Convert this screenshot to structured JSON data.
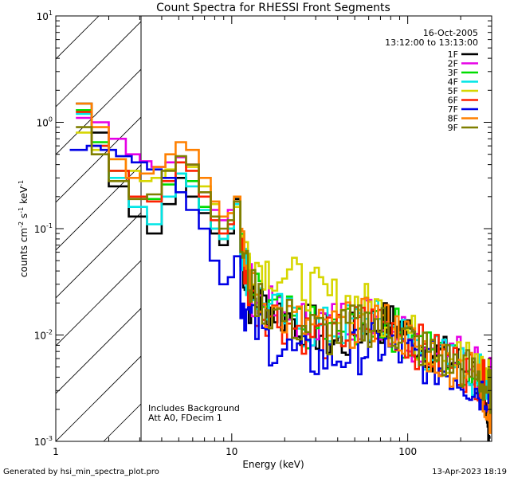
{
  "chart_data": {
    "type": "line",
    "title": "Count Spectra for RHESSI Front Segments",
    "xlabel": "Energy (keV)",
    "ylabel_parts": {
      "a": "counts cm",
      "b": "-2",
      "c": " s",
      "d": "-1",
      "e": " keV",
      "f": "-1"
    },
    "xscale": "log",
    "yscale": "log",
    "xlim": [
      1.0,
      300.0
    ],
    "ylim": [
      0.001,
      10.0
    ],
    "x_ticks": [
      {
        "value": 1,
        "label": "1"
      },
      {
        "value": 10,
        "label": "10"
      },
      {
        "value": 100,
        "label": "100"
      }
    ],
    "y_ticks": [
      {
        "value": 0.001,
        "base": "10",
        "exp": "-3"
      },
      {
        "value": 0.01,
        "base": "10",
        "exp": "-2"
      },
      {
        "value": 0.1,
        "base": "10",
        "exp": "-1"
      },
      {
        "value": 1,
        "base": "10",
        "exp": "0"
      },
      {
        "value": 10,
        "base": "10",
        "exp": "1"
      }
    ],
    "hatched_region": {
      "x_from": 1.0,
      "x_to": 3.0
    },
    "legend_header": [
      "16-Oct-2005",
      "13:12:00 to 13:13:00"
    ],
    "annotations": [
      "Includes Background",
      "Att A0, FDecim 1"
    ],
    "series": [
      {
        "name": "1F",
        "color": "#000000",
        "points": [
          [
            1.3,
            1.5
          ],
          [
            1.6,
            0.8
          ],
          [
            2.0,
            0.25
          ],
          [
            2.6,
            0.13
          ],
          [
            3.3,
            0.09
          ],
          [
            4.0,
            0.17
          ],
          [
            4.8,
            0.3
          ],
          [
            5.5,
            0.2
          ],
          [
            6.5,
            0.14
          ],
          [
            7.6,
            0.09
          ],
          [
            8.5,
            0.07
          ],
          [
            9.5,
            0.09
          ],
          [
            10.3,
            0.19
          ],
          [
            11.2,
            0.06
          ],
          [
            12.5,
            0.02
          ],
          [
            15,
            0.02
          ],
          [
            20,
            0.015
          ],
          [
            30,
            0.011
          ],
          [
            40,
            0.008
          ],
          [
            55,
            0.012
          ],
          [
            70,
            0.013
          ],
          [
            90,
            0.012
          ],
          [
            120,
            0.008
          ],
          [
            160,
            0.006
          ],
          [
            200,
            0.005
          ],
          [
            250,
            0.004
          ],
          [
            280,
            0.0013
          ]
        ]
      },
      {
        "name": "2F",
        "color": "#e600e6",
        "points": [
          [
            1.3,
            1.1
          ],
          [
            1.6,
            1.0
          ],
          [
            2.0,
            0.7
          ],
          [
            2.5,
            0.5
          ],
          [
            3.0,
            0.43
          ],
          [
            3.5,
            0.38
          ],
          [
            4.2,
            0.42
          ],
          [
            4.8,
            0.47
          ],
          [
            5.5,
            0.4
          ],
          [
            6.5,
            0.22
          ],
          [
            7.6,
            0.15
          ],
          [
            8.5,
            0.12
          ],
          [
            9.5,
            0.15
          ],
          [
            10.3,
            0.18
          ],
          [
            11.2,
            0.06
          ],
          [
            13,
            0.025
          ],
          [
            17,
            0.016
          ],
          [
            25,
            0.013
          ],
          [
            35,
            0.013
          ],
          [
            50,
            0.015
          ],
          [
            65,
            0.015
          ],
          [
            85,
            0.012
          ],
          [
            110,
            0.009
          ],
          [
            150,
            0.007
          ],
          [
            200,
            0.006
          ],
          [
            250,
            0.005
          ],
          [
            285,
            0.004
          ]
        ]
      },
      {
        "name": "3F",
        "color": "#00dd00",
        "points": [
          [
            1.3,
            1.3
          ],
          [
            1.6,
            0.65
          ],
          [
            2.0,
            0.35
          ],
          [
            2.6,
            0.2
          ],
          [
            3.3,
            0.19
          ],
          [
            4.0,
            0.26
          ],
          [
            4.8,
            0.33
          ],
          [
            5.5,
            0.28
          ],
          [
            6.5,
            0.16
          ],
          [
            7.6,
            0.1
          ],
          [
            8.5,
            0.08
          ],
          [
            9.5,
            0.1
          ],
          [
            10.3,
            0.2
          ],
          [
            11.2,
            0.07
          ],
          [
            13,
            0.025
          ],
          [
            17,
            0.016
          ],
          [
            25,
            0.012
          ],
          [
            35,
            0.01
          ],
          [
            50,
            0.013
          ],
          [
            65,
            0.014
          ],
          [
            85,
            0.011
          ],
          [
            110,
            0.008
          ],
          [
            150,
            0.006
          ],
          [
            200,
            0.005
          ],
          [
            250,
            0.004
          ],
          [
            285,
            0.003
          ]
        ]
      },
      {
        "name": "4F",
        "color": "#00e6e6",
        "points": [
          [
            1.3,
            1.2
          ],
          [
            1.6,
            0.6
          ],
          [
            2.0,
            0.3
          ],
          [
            2.6,
            0.16
          ],
          [
            3.3,
            0.11
          ],
          [
            4.0,
            0.2
          ],
          [
            4.8,
            0.33
          ],
          [
            5.5,
            0.25
          ],
          [
            6.5,
            0.15
          ],
          [
            7.6,
            0.1
          ],
          [
            8.5,
            0.08
          ],
          [
            9.5,
            0.1
          ],
          [
            10.3,
            0.17
          ],
          [
            11.2,
            0.06
          ],
          [
            13,
            0.025
          ],
          [
            17,
            0.016
          ],
          [
            25,
            0.012
          ],
          [
            35,
            0.011
          ],
          [
            50,
            0.013
          ],
          [
            65,
            0.013
          ],
          [
            85,
            0.011
          ],
          [
            110,
            0.008
          ],
          [
            150,
            0.006
          ],
          [
            200,
            0.005
          ],
          [
            250,
            0.004
          ],
          [
            285,
            0.004
          ]
        ]
      },
      {
        "name": "5F",
        "color": "#d6d600",
        "points": [
          [
            1.3,
            0.8
          ],
          [
            1.6,
            0.55
          ],
          [
            2.0,
            0.45
          ],
          [
            2.5,
            0.35
          ],
          [
            3.0,
            0.28
          ],
          [
            3.5,
            0.3
          ],
          [
            4.2,
            0.36
          ],
          [
            4.8,
            0.42
          ],
          [
            5.5,
            0.38
          ],
          [
            6.5,
            0.25
          ],
          [
            7.6,
            0.17
          ],
          [
            8.5,
            0.13
          ],
          [
            9.5,
            0.14
          ],
          [
            10.3,
            0.16
          ],
          [
            11.2,
            0.08
          ],
          [
            13,
            0.05
          ],
          [
            17,
            0.04
          ],
          [
            25,
            0.03
          ],
          [
            35,
            0.022
          ],
          [
            50,
            0.02
          ],
          [
            65,
            0.018
          ],
          [
            85,
            0.013
          ],
          [
            110,
            0.009
          ],
          [
            150,
            0.007
          ],
          [
            200,
            0.006
          ],
          [
            250,
            0.005
          ],
          [
            285,
            0.004
          ]
        ]
      },
      {
        "name": "6F",
        "color": "#ff2000",
        "points": [
          [
            1.3,
            1.25
          ],
          [
            1.6,
            0.6
          ],
          [
            2.0,
            0.35
          ],
          [
            2.6,
            0.2
          ],
          [
            3.3,
            0.18
          ],
          [
            4.0,
            0.28
          ],
          [
            4.8,
            0.42
          ],
          [
            5.5,
            0.35
          ],
          [
            6.5,
            0.2
          ],
          [
            7.6,
            0.12
          ],
          [
            8.5,
            0.09
          ],
          [
            9.5,
            0.11
          ],
          [
            10.3,
            0.18
          ],
          [
            11.2,
            0.06
          ],
          [
            13,
            0.02
          ],
          [
            17,
            0.015
          ],
          [
            25,
            0.011
          ],
          [
            35,
            0.009
          ],
          [
            50,
            0.012
          ],
          [
            65,
            0.013
          ],
          [
            85,
            0.011
          ],
          [
            110,
            0.008
          ],
          [
            150,
            0.006
          ],
          [
            200,
            0.005
          ],
          [
            250,
            0.004
          ],
          [
            285,
            0.003
          ]
        ]
      },
      {
        "name": "7F",
        "color": "#0000e6",
        "points": [
          [
            1.2,
            0.55
          ],
          [
            1.5,
            0.6
          ],
          [
            1.8,
            0.55
          ],
          [
            2.2,
            0.48
          ],
          [
            2.7,
            0.42
          ],
          [
            3.3,
            0.36
          ],
          [
            4.0,
            0.3
          ],
          [
            4.8,
            0.22
          ],
          [
            5.5,
            0.15
          ],
          [
            6.5,
            0.1
          ],
          [
            7.5,
            0.05
          ],
          [
            8.5,
            0.03
          ],
          [
            9.5,
            0.035
          ],
          [
            10.3,
            0.055
          ],
          [
            11.2,
            0.022
          ],
          [
            13,
            0.012
          ],
          [
            17,
            0.008
          ],
          [
            25,
            0.006
          ],
          [
            35,
            0.006
          ],
          [
            50,
            0.007
          ],
          [
            65,
            0.008
          ],
          [
            85,
            0.007
          ],
          [
            110,
            0.006
          ],
          [
            150,
            0.005
          ],
          [
            200,
            0.004
          ],
          [
            250,
            0.003
          ],
          [
            285,
            0.003
          ]
        ]
      },
      {
        "name": "8F",
        "color": "#ff8000",
        "points": [
          [
            1.3,
            1.5
          ],
          [
            1.6,
            0.9
          ],
          [
            2.0,
            0.45
          ],
          [
            2.5,
            0.3
          ],
          [
            3.0,
            0.33
          ],
          [
            3.6,
            0.38
          ],
          [
            4.2,
            0.5
          ],
          [
            4.8,
            0.65
          ],
          [
            5.5,
            0.55
          ],
          [
            6.5,
            0.3
          ],
          [
            7.6,
            0.18
          ],
          [
            8.5,
            0.13
          ],
          [
            9.5,
            0.14
          ],
          [
            10.3,
            0.2
          ],
          [
            11.2,
            0.07
          ],
          [
            13,
            0.025
          ],
          [
            17,
            0.016
          ],
          [
            25,
            0.012
          ],
          [
            35,
            0.011
          ],
          [
            50,
            0.013
          ],
          [
            65,
            0.014
          ],
          [
            85,
            0.011
          ],
          [
            110,
            0.008
          ],
          [
            150,
            0.006
          ],
          [
            200,
            0.005
          ],
          [
            250,
            0.004
          ],
          [
            285,
            0.002
          ]
        ]
      },
      {
        "name": "9F",
        "color": "#7f7f00",
        "points": [
          [
            1.3,
            0.9
          ],
          [
            1.6,
            0.5
          ],
          [
            2.0,
            0.28
          ],
          [
            2.6,
            0.19
          ],
          [
            3.3,
            0.21
          ],
          [
            4.0,
            0.35
          ],
          [
            4.8,
            0.48
          ],
          [
            5.5,
            0.4
          ],
          [
            6.5,
            0.22
          ],
          [
            7.6,
            0.13
          ],
          [
            8.5,
            0.1
          ],
          [
            9.5,
            0.12
          ],
          [
            10.3,
            0.18
          ],
          [
            11.2,
            0.07
          ],
          [
            13,
            0.025
          ],
          [
            17,
            0.016
          ],
          [
            25,
            0.012
          ],
          [
            35,
            0.01
          ],
          [
            50,
            0.012
          ],
          [
            65,
            0.013
          ],
          [
            85,
            0.011
          ],
          [
            110,
            0.008
          ],
          [
            150,
            0.006
          ],
          [
            200,
            0.005
          ],
          [
            250,
            0.004
          ],
          [
            285,
            0.003
          ]
        ]
      }
    ]
  },
  "footer": {
    "left": "Generated by hsi_min_spectra_plot.pro",
    "right": "13-Apr-2023 18:19"
  }
}
